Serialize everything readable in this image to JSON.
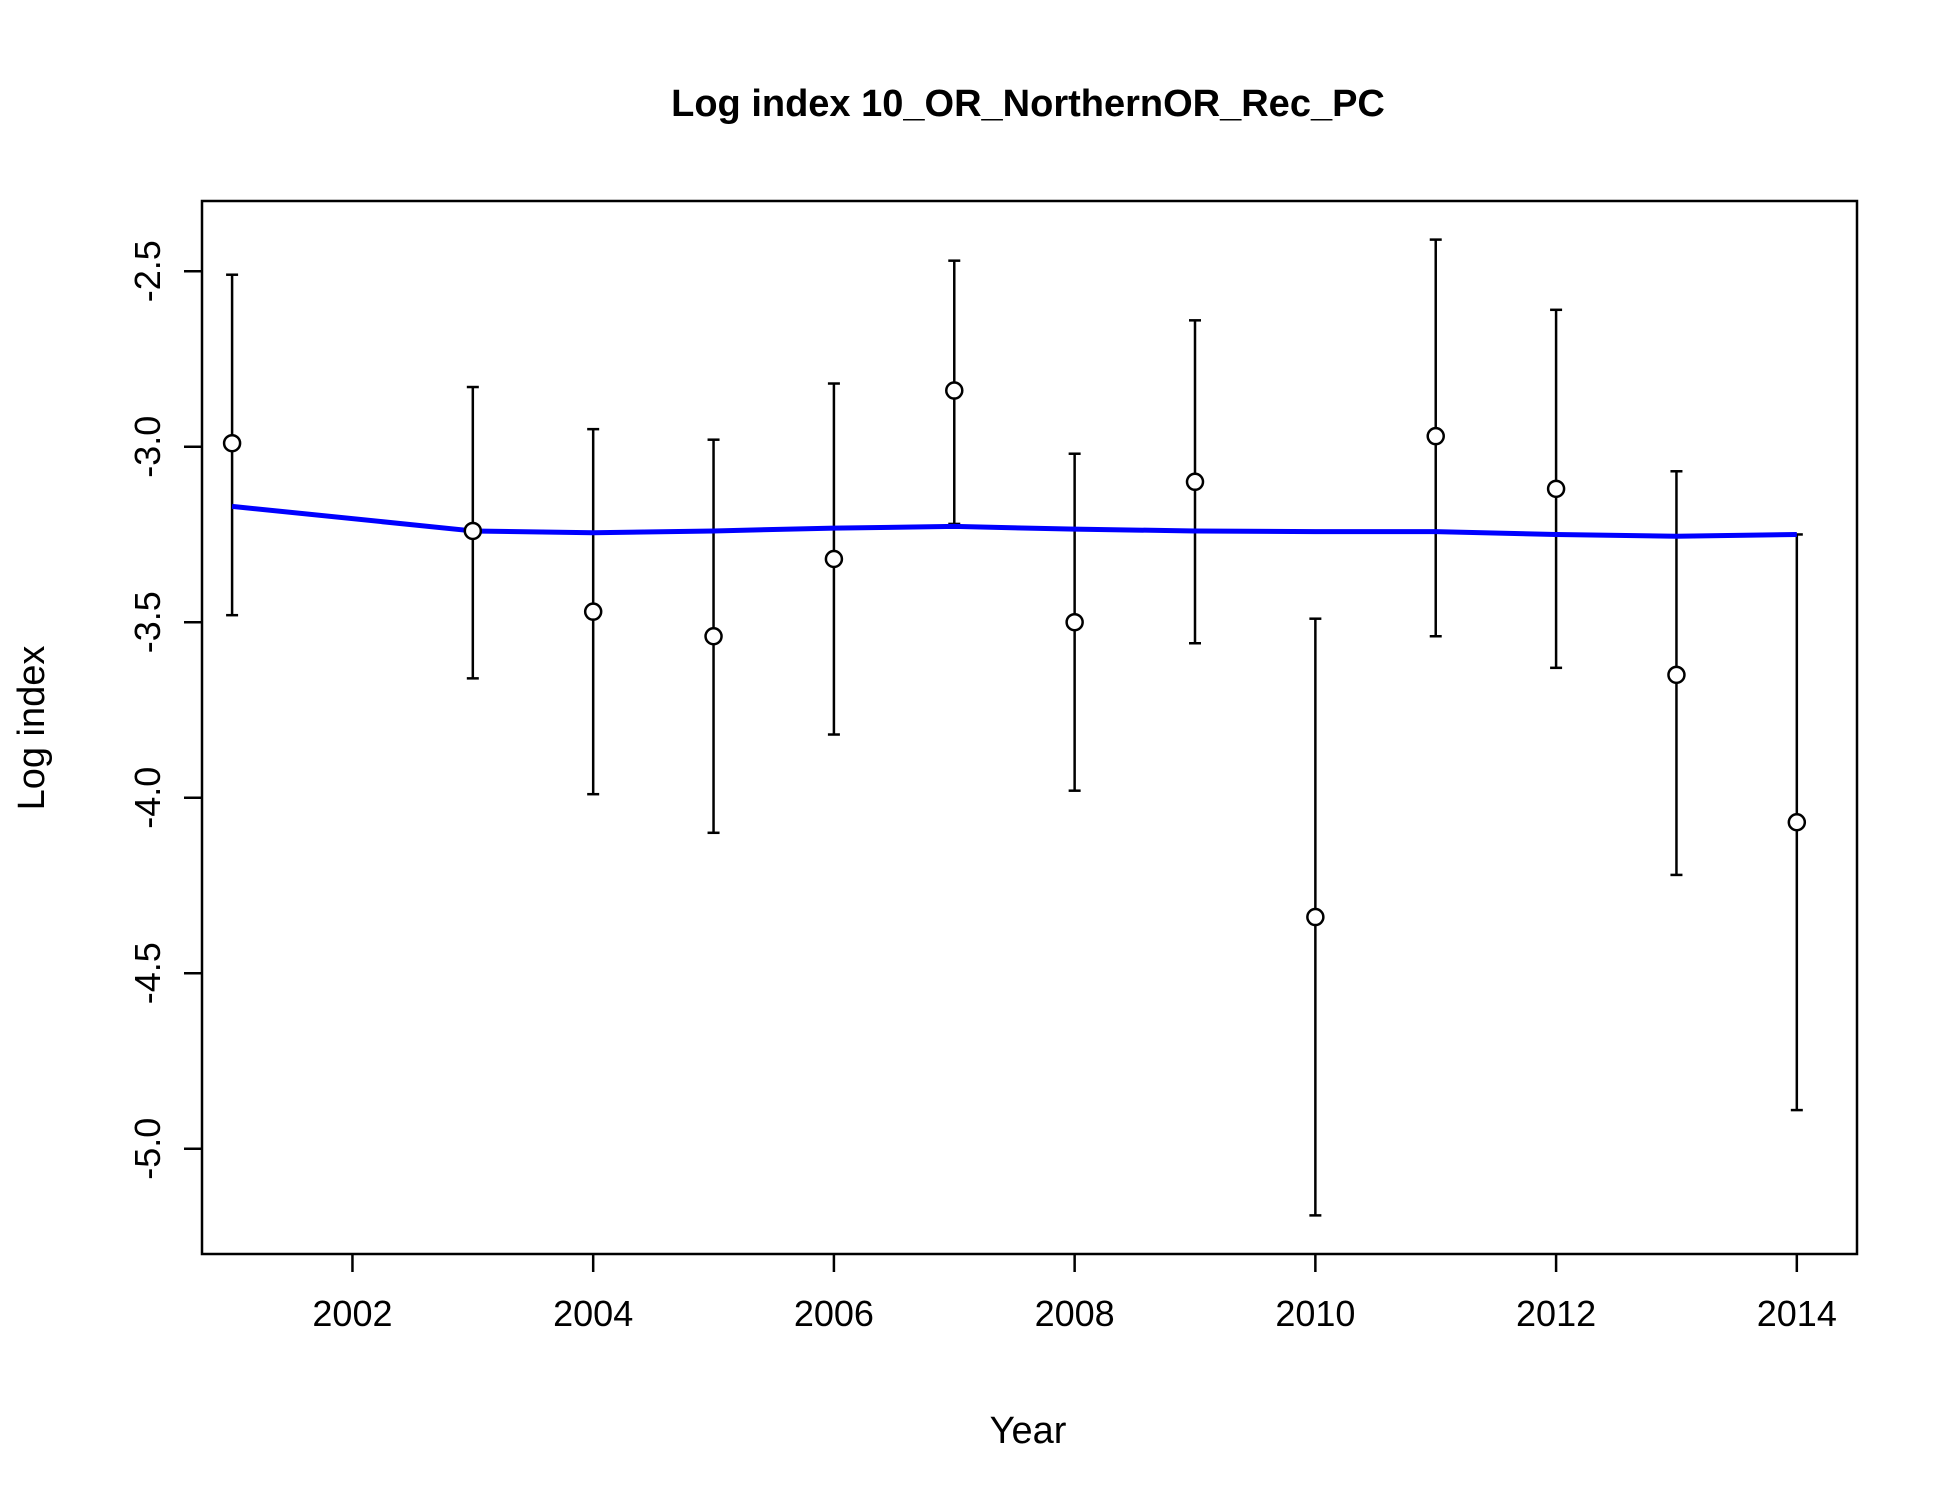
{
  "chart_data": {
    "type": "scatter",
    "title": "Log index 10_OR_NorthernOR_Rec_PC",
    "xlabel": "Year",
    "ylabel": "Log index",
    "xlim": [
      2000.75,
      2014.5
    ],
    "ylim": [
      -5.3,
      -2.3
    ],
    "x_ticks": [
      2002,
      2004,
      2006,
      2008,
      2010,
      2012,
      2014
    ],
    "x_tick_labels": [
      "2002",
      "2004",
      "2006",
      "2008",
      "2010",
      "2012",
      "2014"
    ],
    "y_ticks": [
      -2.5,
      -3.0,
      -3.5,
      -4.0,
      -4.5,
      -5.0
    ],
    "y_tick_labels": [
      "-2.5",
      "-3.0",
      "-3.5",
      "-4.0",
      "-4.5",
      "-5.0"
    ],
    "grid": false,
    "legend": "none",
    "series": [
      {
        "kind": "observed",
        "x": [
          2001,
          2003,
          2004,
          2005,
          2006,
          2007,
          2008,
          2009,
          2010,
          2011,
          2012,
          2013,
          2014
        ],
        "y": [
          -2.99,
          -3.24,
          -3.47,
          -3.54,
          -3.32,
          -2.84,
          -3.5,
          -3.1,
          -4.34,
          -2.97,
          -3.12,
          -3.65,
          -4.07
        ],
        "lower": [
          -3.48,
          -3.66,
          -3.99,
          -4.1,
          -3.82,
          -3.22,
          -3.98,
          -3.56,
          -5.19,
          -3.54,
          -3.63,
          -4.22,
          -4.89
        ],
        "upper": [
          -2.51,
          -2.83,
          -2.95,
          -2.98,
          -2.82,
          -2.47,
          -3.02,
          -2.64,
          -3.49,
          -2.41,
          -2.61,
          -3.07,
          -3.25
        ],
        "color": "#000000"
      },
      {
        "kind": "expected",
        "x": [
          2001,
          2003,
          2004,
          2005,
          2006,
          2007,
          2008,
          2009,
          2010,
          2011,
          2012,
          2013,
          2014
        ],
        "y": [
          -3.17,
          -3.24,
          -3.245,
          -3.24,
          -3.232,
          -3.227,
          -3.235,
          -3.24,
          -3.242,
          -3.242,
          -3.25,
          -3.255,
          -3.25
        ],
        "color": "#0000FF"
      }
    ]
  }
}
